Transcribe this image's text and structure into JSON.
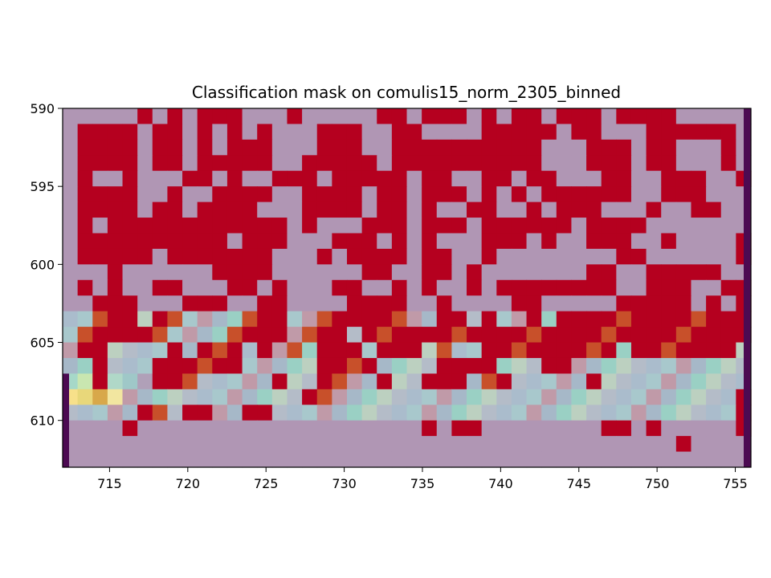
{
  "chart_data": {
    "type": "heatmap",
    "title": "Classification mask on comulis15_norm_2305_binned",
    "xlabel": "",
    "ylabel": "",
    "x_range": [
      712,
      756
    ],
    "y_range": [
      590,
      613
    ],
    "y_inverted": true,
    "x_ticks": [
      715,
      720,
      725,
      730,
      735,
      740,
      745,
      750,
      755
    ],
    "y_ticks": [
      590,
      595,
      600,
      605,
      610
    ],
    "grid": false,
    "layers": [
      "intensity heatmap (inferno-like)",
      "classification mask overlay (red = class 1, grey = class 0)"
    ],
    "colors": {
      "mask_class1": "#b5001f",
      "mask_class0": "#b096b4",
      "edge_band": "#4c0a52"
    },
    "mask_rows": [
      "0000010101110001000001101110101101110111100000",
      "0111101101010100011100110000111110110001111110",
      "0111101101011100011100111111111100011101100010",
      "0111101101111100111110111111111100011101100010",
      "0100100011010011101111101100110110001100111001",
      "0111100100111100111101101110101011111100111000",
      "0111101101111000111101101001100101110001001100",
      "0101111111111110100011101110111111011110000000",
      "0111111111101110001110101000111010011100100001",
      "0111110111111100010111101100100000000110000001",
      "0001000000111100000011001101000000011001111100",
      "0101001100011010001100101001011111111001110011",
      "0011100011100110000111100100001100000111110101",
      "0011101100001110011111100110100101111111111111",
      "0111111000011110111011111111111111111111111111",
      "0110000101110101011101110100111111111011111110",
      "0010001111110000011110000111100011000000000000",
      "0010001110000010011001001110110000010000000000",
      "0000000000000000110000000000000000000000000001",
      "0000011011001100000000000000000000000000000001",
      "0000100000000000000000001011000000001101000001",
      "0000000000000000000000000000000000000000010000",
      "0000000000000000000000000000000000000000000000"
    ],
    "heat_note": "intensity visible through mask in rows 603-609, peak near x=714, y=608"
  }
}
